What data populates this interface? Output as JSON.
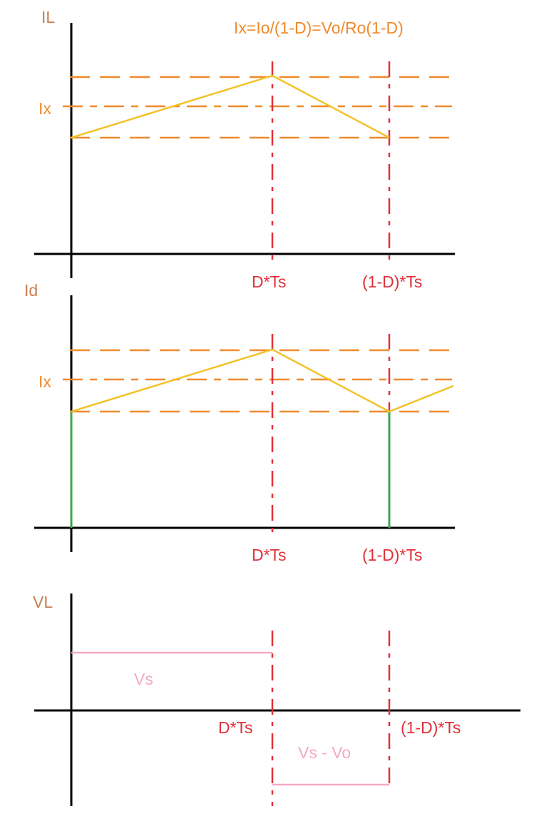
{
  "colors": {
    "axis": "#000000",
    "axis_label": "#c87f50",
    "dashed_orange": "#f08a2c",
    "current_wave": "#f2c22a",
    "vertical_dashed": "#e0313a",
    "green_edge": "#3aa84a",
    "voltage": "#f4a9c6",
    "formula": "#f08a2c"
  },
  "panel1": {
    "y_label": "IL",
    "formula": "Ix=Io/(1-D)=Vo/Ro(1-D)",
    "ix_label": "Ix",
    "t1_label": "D*Ts",
    "t2_label": "(1-D)*Ts"
  },
  "panel2": {
    "y_label": "Id",
    "ix_label": "Ix",
    "t1_label": "D*Ts",
    "t2_label": "(1-D)*Ts"
  },
  "panel3": {
    "y_label": "VL",
    "vs_label": "Vs",
    "vs_minus_vo_label": "Vs - Vo",
    "t1_label": "D*Ts",
    "t2_label": "(1-D)*Ts"
  }
}
